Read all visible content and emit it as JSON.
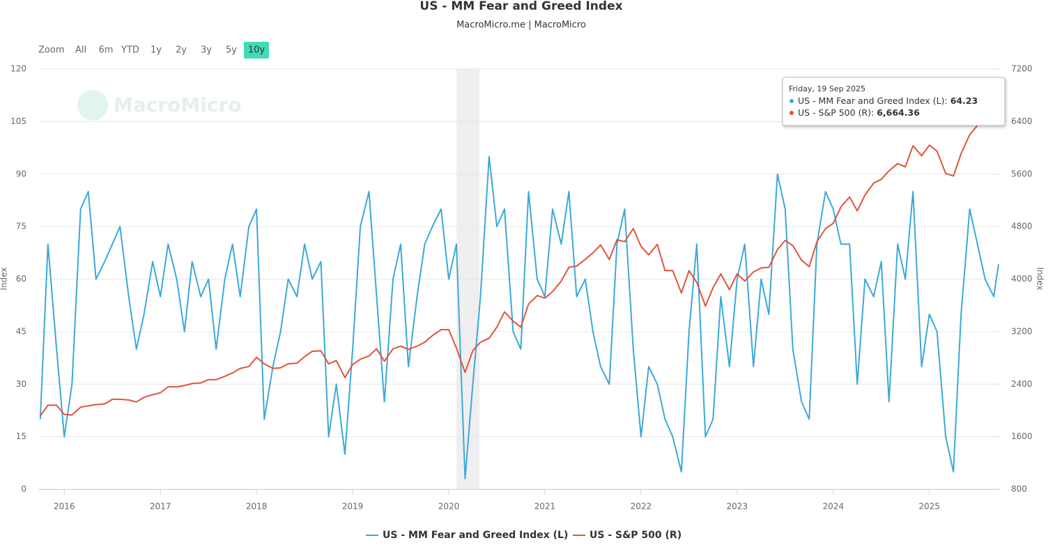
{
  "chart_data": {
    "type": "line",
    "title": "US - MM Fear and Greed Index",
    "subtitle": "MacroMicro.me | MacroMicro",
    "watermark": "MacroMicro",
    "range_selector": {
      "label": "Zoom",
      "buttons": [
        "All",
        "6m",
        "YTD",
        "1y",
        "2y",
        "3y",
        "5y",
        "10y"
      ],
      "selected": "10y"
    },
    "y_label": "Index",
    "y2_label": "Index",
    "xlim": [
      2015.73,
      2025.72
    ],
    "xticks": [
      2016,
      2017,
      2018,
      2019,
      2020,
      2021,
      2022,
      2023,
      2024,
      2025
    ],
    "ylim": [
      0,
      120
    ],
    "yticks": [
      0,
      15,
      30,
      45,
      60,
      75,
      90,
      105,
      120
    ],
    "y2lim": [
      800,
      7200
    ],
    "y2ticks": [
      800,
      1600,
      2400,
      3200,
      4000,
      4800,
      5600,
      6400,
      7200
    ],
    "grid": true,
    "legend": "bottom",
    "bands": [
      {
        "from": 2020.08,
        "to": 2020.32,
        "color": "#efefef"
      }
    ],
    "x": [
      2015.75,
      2015.83,
      2015.92,
      2016.0,
      2016.08,
      2016.17,
      2016.25,
      2016.33,
      2016.42,
      2016.5,
      2016.58,
      2016.67,
      2016.75,
      2016.83,
      2016.92,
      2017.0,
      2017.08,
      2017.17,
      2017.25,
      2017.33,
      2017.42,
      2017.5,
      2017.58,
      2017.67,
      2017.75,
      2017.83,
      2017.92,
      2018.0,
      2018.08,
      2018.17,
      2018.25,
      2018.33,
      2018.42,
      2018.5,
      2018.58,
      2018.67,
      2018.75,
      2018.83,
      2018.92,
      2019.0,
      2019.08,
      2019.17,
      2019.25,
      2019.33,
      2019.42,
      2019.5,
      2019.58,
      2019.67,
      2019.75,
      2019.83,
      2019.92,
      2020.0,
      2020.08,
      2020.17,
      2020.25,
      2020.33,
      2020.42,
      2020.5,
      2020.58,
      2020.67,
      2020.75,
      2020.83,
      2020.92,
      2021.0,
      2021.08,
      2021.17,
      2021.25,
      2021.33,
      2021.42,
      2021.5,
      2021.58,
      2021.67,
      2021.75,
      2021.83,
      2021.92,
      2022.0,
      2022.08,
      2022.17,
      2022.25,
      2022.33,
      2022.42,
      2022.5,
      2022.58,
      2022.67,
      2022.75,
      2022.83,
      2022.92,
      2023.0,
      2023.08,
      2023.17,
      2023.25,
      2023.33,
      2023.42,
      2023.5,
      2023.58,
      2023.67,
      2023.75,
      2023.83,
      2023.92,
      2024.0,
      2024.08,
      2024.17,
      2024.25,
      2024.33,
      2024.42,
      2024.5,
      2024.58,
      2024.67,
      2024.75,
      2024.83,
      2024.92,
      2025.0,
      2025.08,
      2025.17,
      2025.25,
      2025.33,
      2025.42,
      2025.5,
      2025.58,
      2025.67,
      2025.72
    ],
    "series": [
      {
        "name": "US - MM Fear and Greed Index (L)",
        "color": "#3aa9d9",
        "values": [
          20,
          70,
          40,
          15,
          30,
          80,
          85,
          60,
          65,
          70,
          75,
          55,
          40,
          50,
          65,
          55,
          70,
          60,
          45,
          65,
          55,
          60,
          40,
          60,
          70,
          55,
          75,
          80,
          20,
          35,
          45,
          60,
          55,
          70,
          60,
          65,
          15,
          30,
          10,
          40,
          75,
          85,
          55,
          25,
          60,
          70,
          35,
          55,
          70,
          75,
          80,
          60,
          70,
          3,
          30,
          55,
          95,
          75,
          80,
          45,
          40,
          85,
          60,
          55,
          80,
          70,
          85,
          55,
          60,
          45,
          35,
          30,
          70,
          80,
          40,
          15,
          35,
          30,
          20,
          15,
          5,
          45,
          70,
          15,
          20,
          55,
          35,
          60,
          70,
          35,
          60,
          50,
          90,
          80,
          40,
          25,
          20,
          70,
          85,
          80,
          70,
          70,
          30,
          60,
          55,
          65,
          25,
          70,
          60,
          85,
          35,
          50,
          45,
          15,
          5,
          50,
          80,
          70,
          60,
          55,
          64.23
        ]
      },
      {
        "name": "US - S&P 500 (R)",
        "color": "#e2533a",
        "axis": "y2",
        "values": [
          1920,
          2080,
          2080,
          1940,
          1930,
          2050,
          2070,
          2090,
          2100,
          2170,
          2170,
          2160,
          2130,
          2200,
          2240,
          2270,
          2360,
          2360,
          2380,
          2410,
          2420,
          2470,
          2470,
          2520,
          2570,
          2640,
          2670,
          2810,
          2710,
          2640,
          2650,
          2710,
          2720,
          2820,
          2900,
          2910,
          2710,
          2760,
          2500,
          2700,
          2780,
          2830,
          2940,
          2750,
          2940,
          2980,
          2930,
          2980,
          3040,
          3140,
          3230,
          3230,
          2950,
          2580,
          2910,
          3040,
          3100,
          3270,
          3500,
          3360,
          3270,
          3620,
          3750,
          3710,
          3810,
          3970,
          4180,
          4200,
          4300,
          4400,
          4520,
          4300,
          4600,
          4570,
          4770,
          4500,
          4370,
          4530,
          4130,
          4130,
          3790,
          4130,
          3950,
          3590,
          3870,
          4080,
          3840,
          4080,
          3970,
          4110,
          4170,
          4180,
          4450,
          4590,
          4510,
          4290,
          4190,
          4570,
          4770,
          4850,
          5100,
          5250,
          5040,
          5280,
          5460,
          5520,
          5650,
          5760,
          5710,
          6030,
          5880,
          6040,
          5950,
          5610,
          5570,
          5910,
          6200,
          6340,
          6450,
          6500,
          6664.36
        ]
      }
    ],
    "tooltip": {
      "date": "Friday, 19 Sep 2025",
      "items": [
        {
          "value": 64.23
        },
        {
          "value": 6664.36,
          "label": "6,664.36"
        }
      ]
    }
  }
}
